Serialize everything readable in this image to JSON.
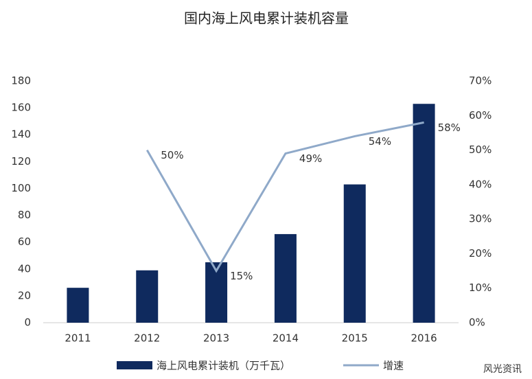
{
  "chart_data": {
    "type": "bar",
    "title": "国内海上风电累计装机容量",
    "categories": [
      "2011",
      "2012",
      "2013",
      "2014",
      "2015",
      "2016"
    ],
    "series": [
      {
        "name": "海上风电累计装机（万千瓦）",
        "type": "bar",
        "color": "#0f2a5e",
        "values": [
          26,
          39,
          45,
          66,
          103,
          163
        ]
      },
      {
        "name": "增速",
        "type": "line",
        "axis": "y2",
        "color": "#8fa9c9",
        "values": [
          null,
          50,
          15,
          49,
          54,
          58
        ],
        "value_labels": [
          null,
          "50%",
          "15%",
          "49%",
          "54%",
          "58%"
        ]
      }
    ],
    "ylim": [
      0,
      180
    ],
    "yticks": [
      0,
      20,
      40,
      60,
      80,
      100,
      120,
      140,
      160,
      180
    ],
    "y2lim": [
      0,
      70
    ],
    "y2ticks": [
      {
        "value": 0,
        "label": "0%"
      },
      {
        "value": 10,
        "label": "10%"
      },
      {
        "value": 20,
        "label": "20%"
      },
      {
        "value": 30,
        "label": "30%"
      },
      {
        "value": 40,
        "label": "40%"
      },
      {
        "value": 50,
        "label": "50%"
      },
      {
        "value": 60,
        "label": "60%"
      },
      {
        "value": 70,
        "label": "70%"
      }
    ],
    "grid": false,
    "source": "风光资讯"
  }
}
